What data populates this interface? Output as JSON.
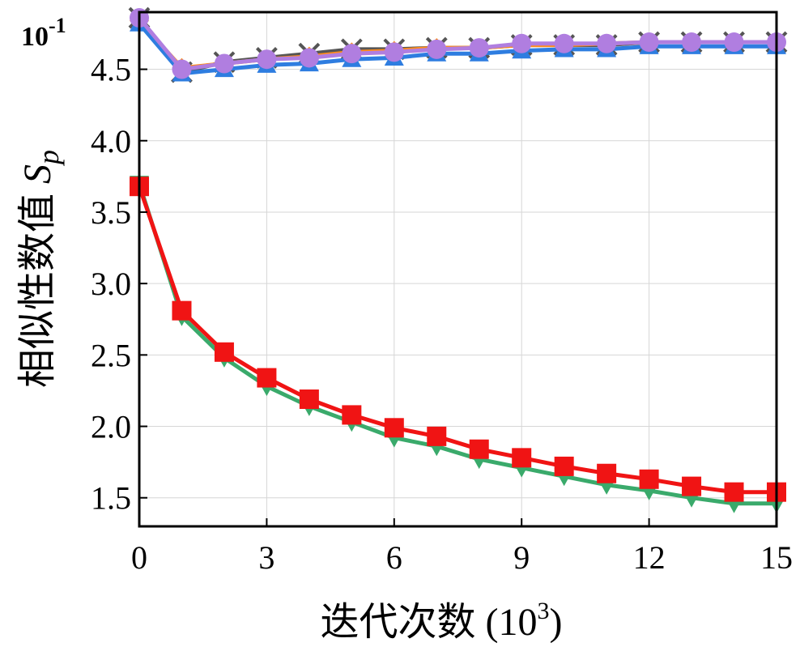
{
  "chart_data": {
    "type": "line",
    "xlabel_main": "迭代次数 (10",
    "xlabel_sup": "3",
    "xlabel_end": ")",
    "ylabel_main": "相似性数值 ",
    "ylabel_symbol": "S",
    "ylabel_sub": "p",
    "y_scale_note_base": "10",
    "y_scale_note_exp": "-1",
    "xlim": [
      0,
      15
    ],
    "ylim": [
      1.3,
      4.9
    ],
    "x_ticks": [
      "0",
      "3",
      "6",
      "9",
      "12",
      "15"
    ],
    "x_tick_values": [
      0,
      3,
      6,
      9,
      12,
      15
    ],
    "y_ticks": [
      "1.5",
      "2.0",
      "2.5",
      "3.0",
      "3.5",
      "4.0",
      "4.5"
    ],
    "y_tick_values": [
      1.5,
      2.0,
      2.5,
      3.0,
      3.5,
      4.0,
      4.5
    ],
    "grid": true,
    "x": [
      0,
      1,
      2,
      3,
      4,
      5,
      6,
      7,
      8,
      9,
      10,
      11,
      12,
      13,
      14,
      15
    ],
    "series": [
      {
        "color": "#555555",
        "marker": "x",
        "values": [
          4.86,
          4.48,
          4.55,
          4.58,
          4.61,
          4.64,
          4.64,
          4.65,
          4.65,
          4.67,
          4.67,
          4.67,
          4.69,
          4.69,
          4.69,
          4.69
        ]
      },
      {
        "color": "#ff8c1a",
        "marker": "diamond",
        "values": [
          4.84,
          4.51,
          4.54,
          4.57,
          4.59,
          4.62,
          4.63,
          4.65,
          4.65,
          4.67,
          4.67,
          4.68,
          4.69,
          4.69,
          4.69,
          4.69
        ]
      },
      {
        "color": "#2e7de0",
        "marker": "triangle-up",
        "values": [
          4.82,
          4.47,
          4.5,
          4.53,
          4.54,
          4.57,
          4.58,
          4.61,
          4.61,
          4.63,
          4.64,
          4.64,
          4.66,
          4.66,
          4.66,
          4.66
        ]
      },
      {
        "color": "#b07ee0",
        "marker": "circle",
        "values": [
          4.86,
          4.5,
          4.54,
          4.57,
          4.58,
          4.61,
          4.62,
          4.64,
          4.65,
          4.68,
          4.68,
          4.68,
          4.69,
          4.69,
          4.69,
          4.69
        ]
      },
      {
        "color": "#3aaa6b",
        "marker": "triangle-down",
        "values": [
          3.7,
          2.77,
          2.48,
          2.28,
          2.14,
          2.03,
          1.92,
          1.86,
          1.77,
          1.71,
          1.65,
          1.59,
          1.55,
          1.5,
          1.46,
          1.46
        ]
      },
      {
        "color": "#f01414",
        "marker": "square",
        "values": [
          3.68,
          2.81,
          2.52,
          2.34,
          2.19,
          2.08,
          1.99,
          1.93,
          1.84,
          1.78,
          1.72,
          1.67,
          1.63,
          1.58,
          1.54,
          1.54
        ]
      }
    ]
  }
}
